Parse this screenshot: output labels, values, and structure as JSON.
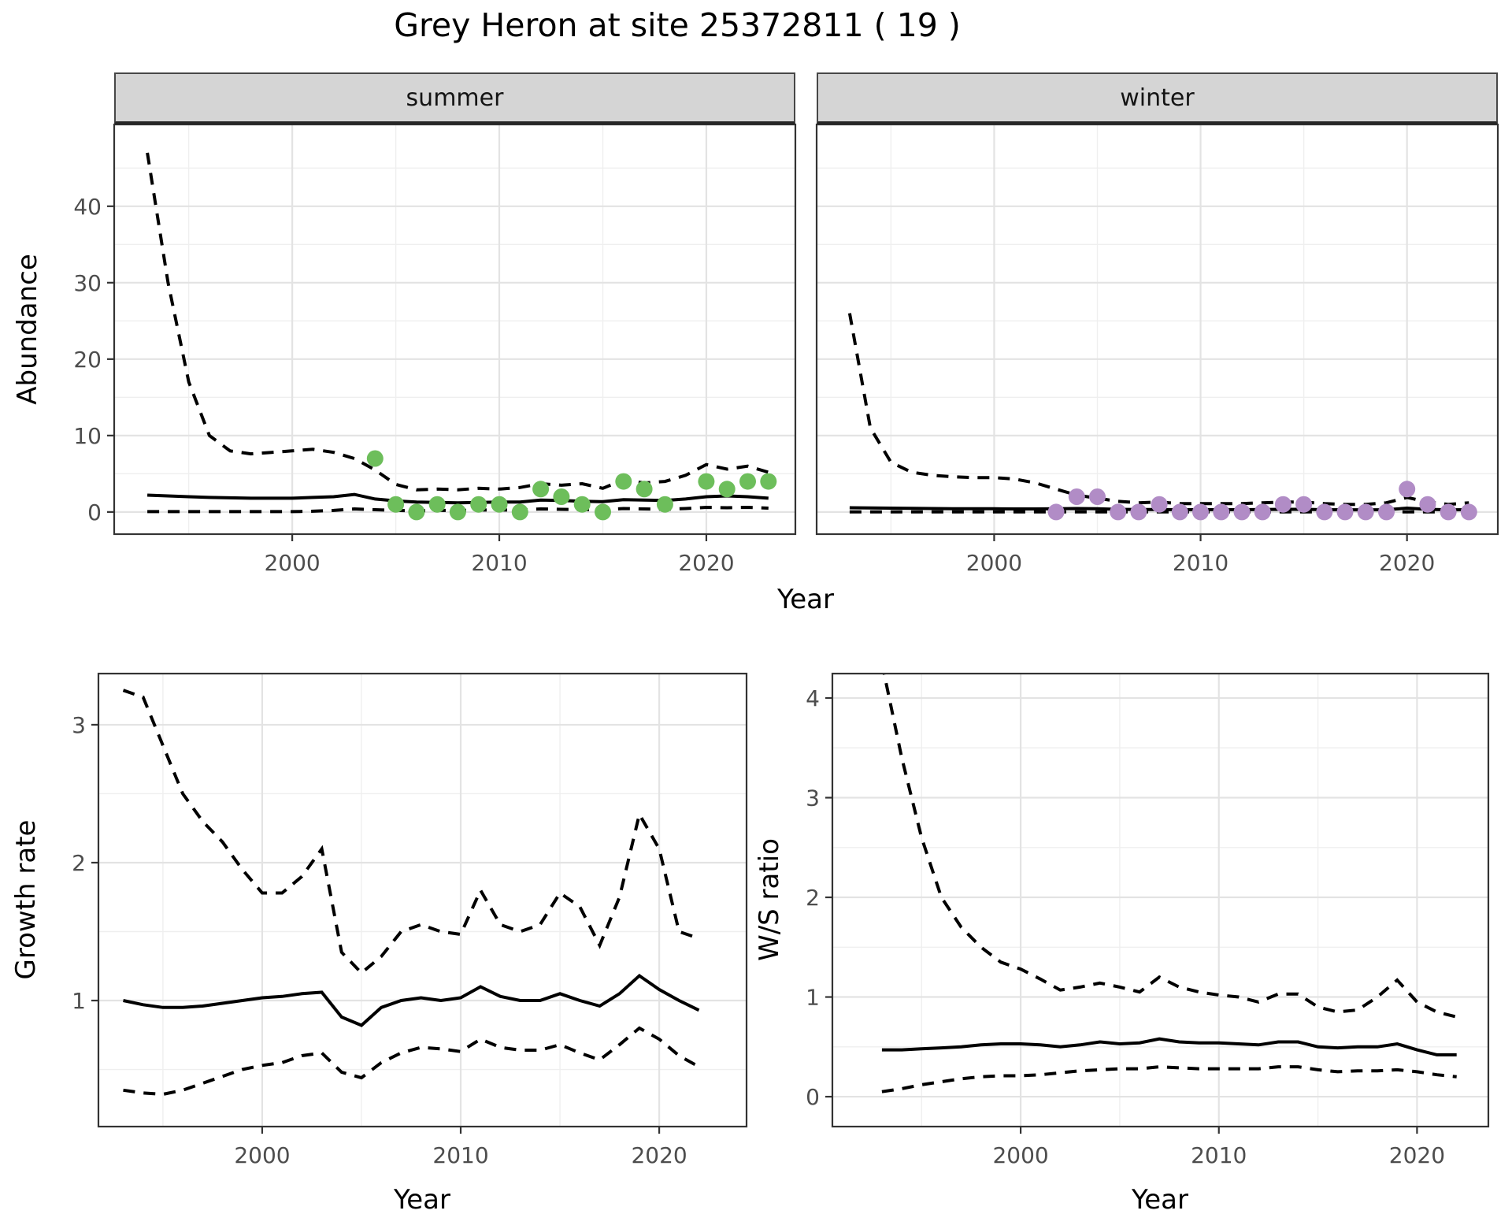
{
  "title": "Grey Heron at site 25372811 ( 19 )",
  "facets": [
    {
      "label": "summer"
    },
    {
      "label": "winter"
    }
  ],
  "axis_labels": {
    "abundance": "Abundance",
    "year": "Year",
    "growth_rate": "Growth rate",
    "ws_ratio": "W/S ratio"
  },
  "colors": {
    "summer_point": "#6DBE5B",
    "winter_point": "#B18CC6",
    "line": "#000000",
    "strip_bg": "#D5D5D5",
    "panel_border": "#333333",
    "tick": "#333333",
    "tick_text": "#4D4D4D",
    "grid_major": "#E3E3E3",
    "grid_minor": "#EFEFEF"
  },
  "chart_data": [
    {
      "name": "abundance-summer",
      "type": "line",
      "facet": "summer",
      "xlabel": "Year",
      "ylabel": "Abundance",
      "xlim": [
        1991.4,
        2024.3
      ],
      "ylim": [
        -2.9,
        50.7
      ],
      "xticks": [
        2000,
        2010,
        2020
      ],
      "xticks_minor": [
        1995,
        2005,
        2015
      ],
      "yticks": [
        0,
        10,
        20,
        30,
        40
      ],
      "yticks_minor": [
        5,
        15,
        25,
        35,
        45
      ],
      "years": [
        1993,
        1994,
        1995,
        1996,
        1997,
        1998,
        1999,
        2000,
        2001,
        2002,
        2003,
        2004,
        2005,
        2006,
        2007,
        2008,
        2009,
        2010,
        2011,
        2012,
        2013,
        2014,
        2015,
        2016,
        2017,
        2018,
        2019,
        2020,
        2021,
        2022,
        2023
      ],
      "series": [
        {
          "name": "upper_ci",
          "style": "dashed",
          "values": [
            47,
            30,
            17,
            10,
            8,
            7.6,
            7.8,
            8,
            8.2,
            7.8,
            7,
            5.5,
            3.6,
            2.9,
            3.0,
            2.9,
            3.1,
            3.0,
            3.2,
            3.7,
            3.5,
            3.7,
            3.1,
            4.2,
            3.8,
            4.0,
            4.8,
            6.2,
            5.6,
            6.0,
            5.2
          ]
        },
        {
          "name": "mean",
          "style": "solid",
          "values": [
            2.2,
            2.1,
            2.0,
            1.9,
            1.85,
            1.8,
            1.8,
            1.8,
            1.9,
            2.0,
            2.3,
            1.7,
            1.45,
            1.3,
            1.25,
            1.2,
            1.25,
            1.3,
            1.3,
            1.55,
            1.5,
            1.4,
            1.35,
            1.6,
            1.55,
            1.5,
            1.7,
            2.0,
            2.1,
            2.0,
            1.8
          ]
        },
        {
          "name": "lower_ci",
          "style": "dashed",
          "values": [
            0.05,
            0.05,
            0.05,
            0.05,
            0.05,
            0.05,
            0.05,
            0.05,
            0.1,
            0.2,
            0.4,
            0.3,
            0.2,
            0.15,
            0.2,
            0.2,
            0.25,
            0.25,
            0.25,
            0.4,
            0.35,
            0.3,
            0.3,
            0.45,
            0.4,
            0.35,
            0.45,
            0.6,
            0.55,
            0.6,
            0.5
          ]
        }
      ],
      "points": {
        "color_key": "summer_point",
        "data": [
          [
            2004,
            7
          ],
          [
            2005,
            1
          ],
          [
            2006,
            0
          ],
          [
            2007,
            1
          ],
          [
            2008,
            0
          ],
          [
            2009,
            1
          ],
          [
            2010,
            1
          ],
          [
            2011,
            0
          ],
          [
            2012,
            3
          ],
          [
            2013,
            2
          ],
          [
            2014,
            1
          ],
          [
            2015,
            0
          ],
          [
            2016,
            4
          ],
          [
            2017,
            3
          ],
          [
            2018,
            1
          ],
          [
            2020,
            4
          ],
          [
            2021,
            3
          ],
          [
            2022,
            4
          ],
          [
            2023,
            4
          ]
        ]
      }
    },
    {
      "name": "abundance-winter",
      "type": "line",
      "facet": "winter",
      "xlabel": "Year",
      "ylabel": "Abundance",
      "xlim": [
        1991.4,
        2024.4
      ],
      "ylim": [
        -2.9,
        50.7
      ],
      "xticks": [
        2000,
        2010,
        2020
      ],
      "xticks_minor": [
        1995,
        2005,
        2015
      ],
      "yticks": [
        0,
        10,
        20,
        30,
        40
      ],
      "yticks_minor": [
        5,
        15,
        25,
        35,
        45
      ],
      "years": [
        1993,
        1994,
        1995,
        1996,
        1997,
        1998,
        1999,
        2000,
        2001,
        2002,
        2003,
        2004,
        2005,
        2006,
        2007,
        2008,
        2009,
        2010,
        2011,
        2012,
        2013,
        2014,
        2015,
        2016,
        2017,
        2018,
        2019,
        2020,
        2021,
        2022,
        2023
      ],
      "series": [
        {
          "name": "upper_ci",
          "style": "dashed",
          "values": [
            26,
            11,
            6.5,
            5.2,
            4.8,
            4.6,
            4.5,
            4.5,
            4.3,
            3.8,
            3.0,
            2.2,
            1.8,
            1.4,
            1.2,
            1.3,
            1.1,
            1.1,
            1.1,
            1.1,
            1.2,
            1.3,
            1.3,
            1.1,
            1.0,
            1.0,
            1.2,
            1.9,
            1.3,
            1.0,
            1.2
          ]
        },
        {
          "name": "mean",
          "style": "solid",
          "values": [
            0.55,
            0.52,
            0.5,
            0.47,
            0.45,
            0.43,
            0.42,
            0.42,
            0.4,
            0.4,
            0.42,
            0.45,
            0.42,
            0.35,
            0.32,
            0.32,
            0.3,
            0.3,
            0.3,
            0.3,
            0.32,
            0.35,
            0.35,
            0.3,
            0.28,
            0.28,
            0.3,
            0.5,
            0.35,
            0.28,
            0.3
          ]
        },
        {
          "name": "lower_ci",
          "style": "dashed",
          "values": [
            0.02,
            0.02,
            0.02,
            0.02,
            0.02,
            0.02,
            0.02,
            0.02,
            0.02,
            0.02,
            0.02,
            0.02,
            0.02,
            0.02,
            0.02,
            0.02,
            0.02,
            0.02,
            0.02,
            0.02,
            0.02,
            0.02,
            0.02,
            0.02,
            0.02,
            0.02,
            0.02,
            0.02,
            0.02,
            0.02,
            0.02
          ]
        }
      ],
      "points": {
        "color_key": "winter_point",
        "data": [
          [
            2003,
            0
          ],
          [
            2004,
            2
          ],
          [
            2005,
            2
          ],
          [
            2006,
            0
          ],
          [
            2007,
            0
          ],
          [
            2008,
            1
          ],
          [
            2009,
            0
          ],
          [
            2010,
            0
          ],
          [
            2011,
            0
          ],
          [
            2012,
            0
          ],
          [
            2013,
            0
          ],
          [
            2014,
            1
          ],
          [
            2015,
            1
          ],
          [
            2016,
            0
          ],
          [
            2017,
            0
          ],
          [
            2018,
            0
          ],
          [
            2019,
            0
          ],
          [
            2020,
            3
          ],
          [
            2021,
            1
          ],
          [
            2022,
            0
          ],
          [
            2023,
            0
          ]
        ]
      }
    },
    {
      "name": "growth-rate",
      "type": "line",
      "xlabel": "Year",
      "ylabel": "Growth rate",
      "xlim": [
        1991.75,
        2024.4
      ],
      "ylim": [
        0.086,
        3.371
      ],
      "xticks": [
        2000,
        2010,
        2020
      ],
      "xticks_minor": [
        1995,
        2005,
        2015
      ],
      "yticks": [
        1,
        2,
        3
      ],
      "yticks_minor": [
        0.5,
        1.5,
        2.5
      ],
      "years": [
        1993,
        1994,
        1995,
        1996,
        1997,
        1998,
        1999,
        2000,
        2001,
        2002,
        2003,
        2004,
        2005,
        2006,
        2007,
        2008,
        2009,
        2010,
        2011,
        2012,
        2013,
        2014,
        2015,
        2016,
        2017,
        2018,
        2019,
        2020,
        2021,
        2022
      ],
      "series": [
        {
          "name": "upper_ci",
          "style": "dashed",
          "values": [
            3.25,
            3.2,
            2.85,
            2.5,
            2.3,
            2.15,
            1.95,
            1.78,
            1.78,
            1.9,
            2.1,
            1.35,
            1.2,
            1.32,
            1.5,
            1.55,
            1.5,
            1.48,
            1.8,
            1.55,
            1.5,
            1.55,
            1.78,
            1.68,
            1.4,
            1.75,
            2.35,
            2.1,
            1.5,
            1.45
          ]
        },
        {
          "name": "mean",
          "style": "solid",
          "values": [
            1.0,
            0.97,
            0.95,
            0.95,
            0.96,
            0.98,
            1.0,
            1.02,
            1.03,
            1.05,
            1.06,
            0.88,
            0.82,
            0.95,
            1.0,
            1.02,
            1.0,
            1.02,
            1.1,
            1.03,
            1.0,
            1.0,
            1.05,
            1.0,
            0.96,
            1.05,
            1.18,
            1.08,
            1.0,
            0.93
          ]
        },
        {
          "name": "lower_ci",
          "style": "dashed",
          "values": [
            0.35,
            0.33,
            0.32,
            0.35,
            0.4,
            0.45,
            0.5,
            0.53,
            0.55,
            0.6,
            0.62,
            0.48,
            0.44,
            0.55,
            0.62,
            0.66,
            0.65,
            0.63,
            0.72,
            0.66,
            0.64,
            0.64,
            0.68,
            0.62,
            0.57,
            0.68,
            0.8,
            0.72,
            0.6,
            0.52
          ]
        }
      ]
    },
    {
      "name": "ws-ratio",
      "type": "line",
      "xlabel": "Year",
      "ylabel": "W/S ratio",
      "xlim": [
        1990.5,
        2023.6
      ],
      "ylim": [
        -0.3,
        4.245
      ],
      "xticks": [
        2000,
        2010,
        2020
      ],
      "xticks_minor": [
        1995,
        2005,
        2015
      ],
      "yticks": [
        0,
        1,
        2,
        3,
        4
      ],
      "yticks_minor": [
        0.5,
        1.5,
        2.5,
        3.5
      ],
      "years": [
        1993,
        1994,
        1995,
        1996,
        1997,
        1998,
        1999,
        2000,
        2001,
        2002,
        2003,
        2004,
        2005,
        2006,
        2007,
        2008,
        2009,
        2010,
        2011,
        2012,
        2013,
        2014,
        2015,
        2016,
        2017,
        2018,
        2019,
        2020,
        2021,
        2022
      ],
      "series": [
        {
          "name": "upper_ci",
          "style": "dashed",
          "values": [
            4.35,
            3.4,
            2.6,
            2.0,
            1.7,
            1.5,
            1.35,
            1.28,
            1.18,
            1.07,
            1.1,
            1.14,
            1.1,
            1.05,
            1.2,
            1.1,
            1.05,
            1.02,
            1.0,
            0.95,
            1.03,
            1.03,
            0.9,
            0.85,
            0.87,
            1.0,
            1.17,
            0.95,
            0.85,
            0.8
          ]
        },
        {
          "name": "mean",
          "style": "solid",
          "values": [
            0.47,
            0.47,
            0.48,
            0.49,
            0.5,
            0.52,
            0.53,
            0.53,
            0.52,
            0.5,
            0.52,
            0.55,
            0.53,
            0.54,
            0.58,
            0.55,
            0.54,
            0.54,
            0.53,
            0.52,
            0.55,
            0.55,
            0.5,
            0.49,
            0.5,
            0.5,
            0.53,
            0.47,
            0.42,
            0.42
          ]
        },
        {
          "name": "lower_ci",
          "style": "dashed",
          "values": [
            0.05,
            0.08,
            0.12,
            0.15,
            0.18,
            0.2,
            0.21,
            0.21,
            0.22,
            0.24,
            0.26,
            0.27,
            0.28,
            0.28,
            0.3,
            0.29,
            0.28,
            0.28,
            0.28,
            0.28,
            0.3,
            0.3,
            0.27,
            0.25,
            0.26,
            0.26,
            0.27,
            0.25,
            0.22,
            0.2
          ]
        }
      ]
    }
  ]
}
